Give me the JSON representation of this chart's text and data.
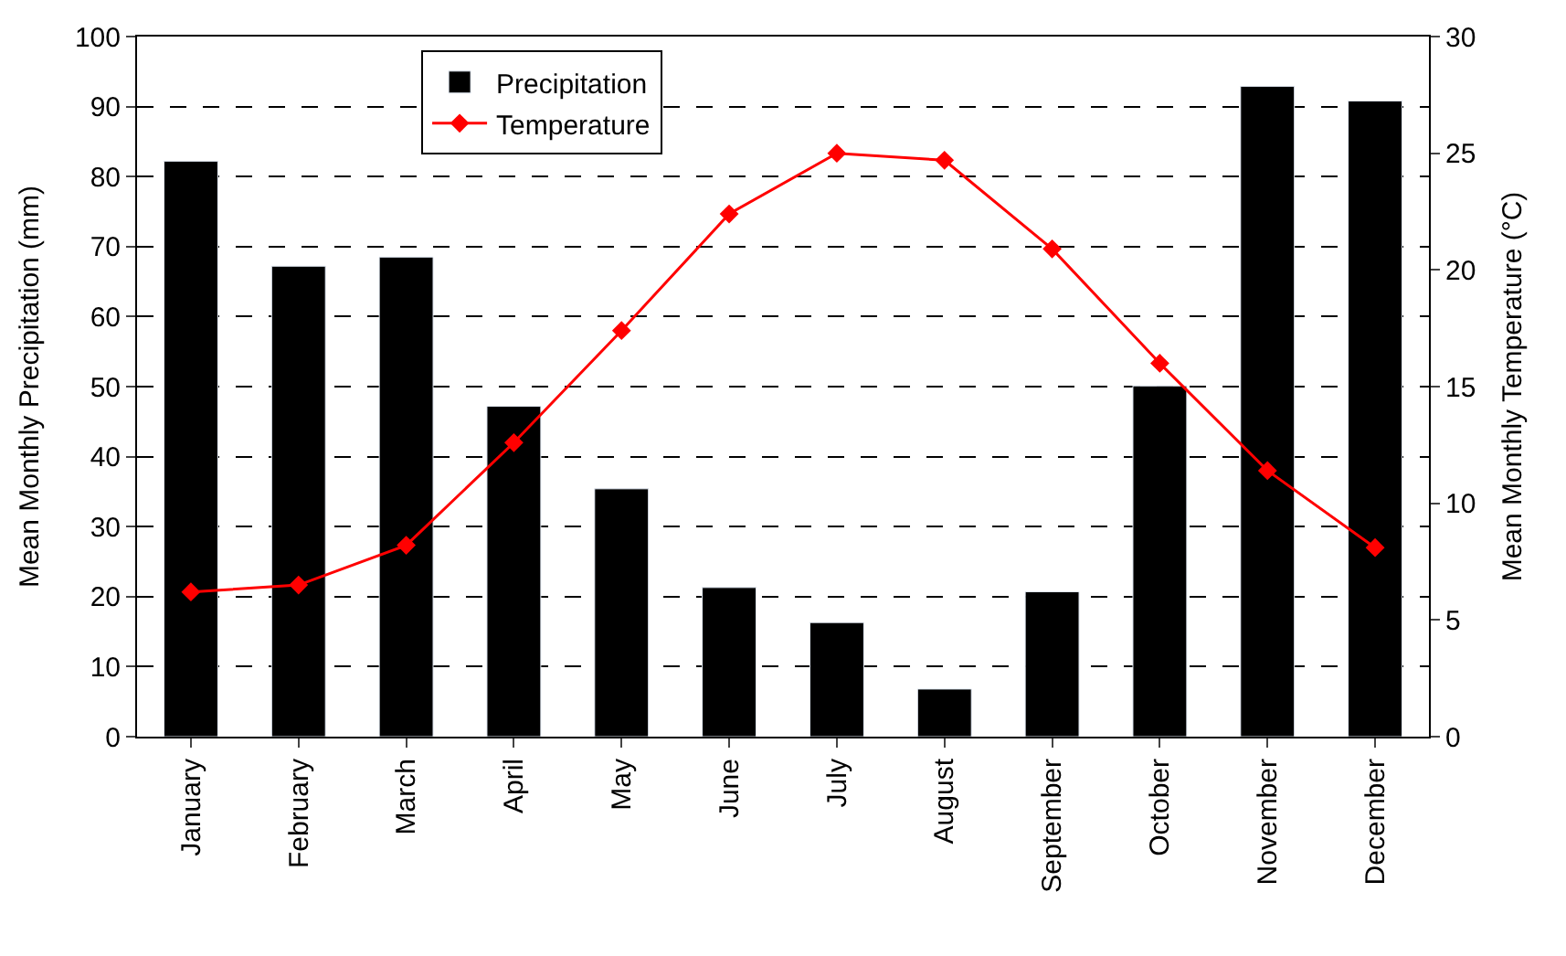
{
  "chart_data": {
    "type": "bar",
    "categories": [
      "January",
      "February",
      "March",
      "April",
      "May",
      "June",
      "July",
      "August",
      "September",
      "October",
      "November",
      "December"
    ],
    "ylabel": "Mean Monthly Precipitation (mm)",
    "y2label": "Mean Monthly Temperature (°C)",
    "series": [
      {
        "name": "Precipitation",
        "color": "#000000",
        "values": [
          82.2,
          67.2,
          68.5,
          47.2,
          35.4,
          21.3,
          16.3,
          6.8,
          20.7,
          50.1,
          92.9,
          90.8
        ]
      },
      {
        "name": "Temperature",
        "type": "line",
        "axis": "y2",
        "color": "#ff0000",
        "marker": "diamond",
        "line_style": "solid",
        "values": [
          6.2,
          6.5,
          8.2,
          12.6,
          17.4,
          22.4,
          25.0,
          24.7,
          20.9,
          16.0,
          11.4,
          8.1
        ]
      }
    ],
    "ylim": [
      0,
      100
    ],
    "yticks": [
      0,
      10,
      20,
      30,
      40,
      50,
      60,
      70,
      80,
      90,
      100
    ],
    "y2lim": [
      0,
      30
    ],
    "y2ticks": [
      0,
      5,
      10,
      15,
      20,
      25,
      30
    ],
    "grid": "y",
    "legend": "top left"
  }
}
